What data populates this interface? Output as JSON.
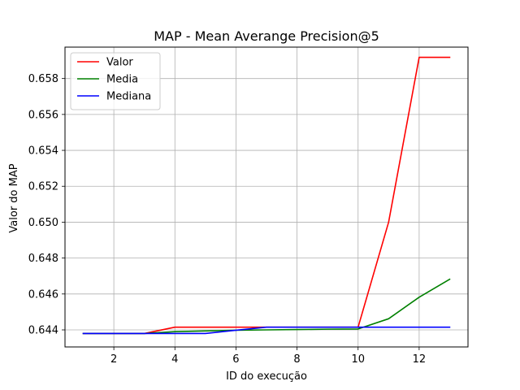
{
  "chart_data": {
    "type": "line",
    "title": "MAP - Mean Averange Precision@5",
    "xlabel": "ID do execução",
    "ylabel": "Valor do MAP",
    "x": [
      1,
      2,
      3,
      4,
      5,
      6,
      7,
      8,
      9,
      10,
      11,
      12,
      13
    ],
    "xlim": [
      0.4,
      13.6
    ],
    "ylim": [
      0.64305,
      0.65975
    ],
    "xticks": [
      2,
      4,
      6,
      8,
      10,
      12
    ],
    "xtick_labels": [
      "2",
      "4",
      "6",
      "8",
      "10",
      "12"
    ],
    "yticks": [
      0.644,
      0.646,
      0.648,
      0.65,
      0.652,
      0.654,
      0.656,
      0.658
    ],
    "ytick_labels": [
      "0.644",
      "0.646",
      "0.648",
      "0.650",
      "0.652",
      "0.654",
      "0.656",
      "0.658"
    ],
    "grid": true,
    "legend_position": "top-left",
    "series": [
      {
        "name": "Valor",
        "color": "#ff0000",
        "values": [
          0.6438,
          0.6438,
          0.6438,
          0.64415,
          0.64415,
          0.64415,
          0.64415,
          0.64415,
          0.64415,
          0.64415,
          0.65,
          0.65918,
          0.65918
        ]
      },
      {
        "name": "Media",
        "color": "#008000",
        "values": [
          0.6438,
          0.6438,
          0.6438,
          0.6439,
          0.64394,
          0.64398,
          0.644,
          0.64402,
          0.64404,
          0.64405,
          0.64462,
          0.64582,
          0.64682
        ]
      },
      {
        "name": "Mediana",
        "color": "#0000ff",
        "values": [
          0.6438,
          0.6438,
          0.6438,
          0.6438,
          0.6438,
          0.64398,
          0.64415,
          0.64415,
          0.64415,
          0.64415,
          0.64415,
          0.64415,
          0.64415
        ]
      }
    ]
  }
}
